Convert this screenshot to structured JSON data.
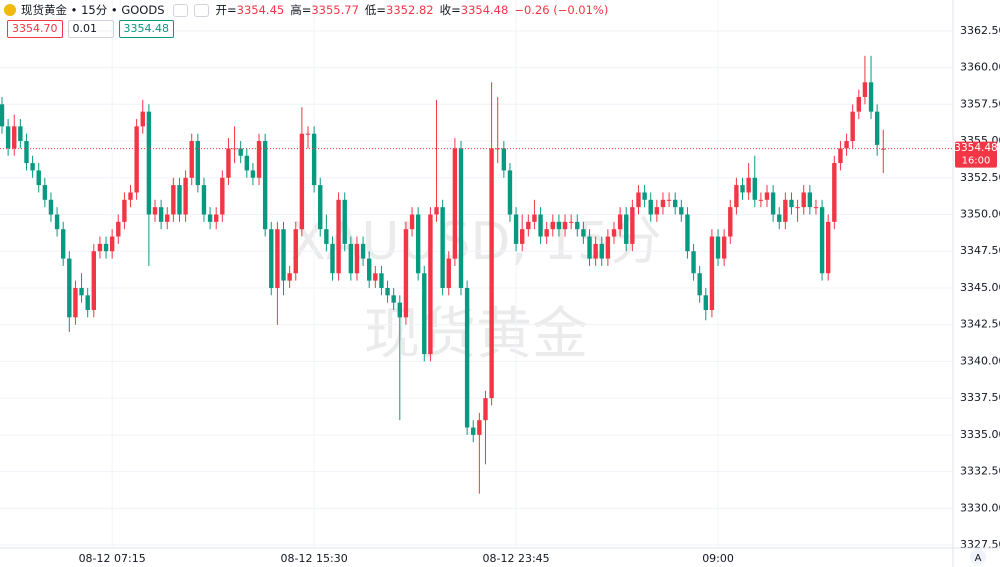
{
  "chart_data": {
    "type": "candlestick",
    "header": {
      "symbol": "现货黄金 • 15分 • GOODS",
      "field_labels": [
        "开=",
        "高=",
        "低=",
        "收="
      ],
      "change": "−0.26 (−0.01%)"
    },
    "quote_boxes": [
      "3354.70",
      "0.01",
      "3354.48"
    ],
    "watermark": [
      "XAUUSD, 15分",
      "现货黄金"
    ],
    "countdown": "16:00",
    "scale_button": "A",
    "up_color": "#f23645",
    "down_color": "#089981",
    "grid": true,
    "ylim": [
      3327.3,
      3364.6
    ],
    "yticks": [
      {
        "value": 3327.5,
        "label": "3327.50"
      },
      {
        "value": 3330,
        "label": "3330.00"
      },
      {
        "value": 3332.5,
        "label": "3332.50"
      },
      {
        "value": 3335,
        "label": "3335.00"
      },
      {
        "value": 3337.5,
        "label": "3337.50"
      },
      {
        "value": 3340,
        "label": "3340.00"
      },
      {
        "value": 3342.5,
        "label": "3342.50"
      },
      {
        "value": 3345,
        "label": "3345.00"
      },
      {
        "value": 3347.5,
        "label": "3347.50"
      },
      {
        "value": 3350,
        "label": "3350.00"
      },
      {
        "value": 3352.5,
        "label": "3352.50"
      },
      {
        "value": 3355,
        "label": "3355.00"
      },
      {
        "value": 3357.5,
        "label": "3357.50"
      },
      {
        "value": 3360,
        "label": "3360.00"
      },
      {
        "value": 3362.5,
        "label": "3362.50"
      }
    ],
    "categories": [
      null,
      null,
      null,
      null,
      null,
      null,
      null,
      null,
      null,
      null,
      null,
      null,
      null,
      null,
      null,
      null,
      null,
      null,
      "08-12 07:15",
      null,
      null,
      null,
      null,
      null,
      null,
      null,
      null,
      null,
      null,
      null,
      null,
      null,
      null,
      null,
      null,
      null,
      null,
      null,
      null,
      null,
      null,
      null,
      null,
      null,
      null,
      null,
      null,
      null,
      null,
      null,
      null,
      "08-12 15:30",
      null,
      null,
      null,
      null,
      null,
      null,
      null,
      null,
      null,
      null,
      null,
      null,
      null,
      null,
      null,
      null,
      null,
      null,
      null,
      null,
      null,
      null,
      null,
      null,
      null,
      null,
      null,
      null,
      null,
      null,
      null,
      null,
      "08-12 23:45",
      null,
      null,
      null,
      null,
      null,
      null,
      null,
      null,
      null,
      null,
      null,
      null,
      null,
      null,
      null,
      null,
      null,
      null,
      null,
      null,
      null,
      null,
      null,
      null,
      null,
      null,
      null,
      null,
      null,
      null,
      null,
      null,
      "09:00",
      null,
      null,
      null,
      null,
      null,
      null,
      null,
      null,
      null,
      null,
      null,
      null,
      null,
      null,
      null,
      null,
      null,
      null,
      null,
      null,
      null,
      null,
      null,
      null,
      null,
      null,
      null
    ],
    "open": [
      3357.5,
      3356.0,
      3354.5,
      3356.0,
      3355.0,
      3353.5,
      3353.0,
      3352.0,
      3351.0,
      3350.0,
      3349.0,
      3347.0,
      3343.0,
      3345.0,
      3344.5,
      3343.5,
      3347.5,
      3348.0,
      3347.5,
      3348.5,
      3349.5,
      3351.0,
      3351.5,
      3356.0,
      3357.0,
      3350.0,
      3350.5,
      3349.5,
      3350.0,
      3352.0,
      3350.0,
      3352.5,
      3355.0,
      3352.0,
      3350.0,
      3349.5,
      3350.0,
      3352.5,
      3354.5,
      3354.5,
      3354.0,
      3353.0,
      3352.5,
      3355.0,
      3349.0,
      3345.0,
      3349.0,
      3345.5,
      3346.0,
      3349.0,
      3355.5,
      3355.5,
      3352.0,
      3349.0,
      3348.0,
      3346.0,
      3351.0,
      3348.0,
      3346.0,
      3348.0,
      3347.0,
      3345.5,
      3346.0,
      3345.0,
      3344.5,
      3344.0,
      3343.0,
      3349.0,
      3350.0,
      3346.0,
      3340.5,
      3350.0,
      3350.5,
      3345.0,
      3347.0,
      3354.5,
      3345.0,
      3335.5,
      3335.0,
      3336.0,
      3337.5,
      3354.5,
      3354.5,
      3353.0,
      3350.0,
      3348.0,
      3349.0,
      3349.5,
      3350.0,
      3348.5,
      3349.0,
      3349.5,
      3349.0,
      3349.5,
      3349.5,
      3349.0,
      3348.5,
      3347.0,
      3348.0,
      3347.0,
      3348.5,
      3349.0,
      3350.0,
      3348.0,
      3350.5,
      3351.5,
      3351.0,
      3350.0,
      3350.5,
      3351.0,
      3351.0,
      3350.5,
      3350.0,
      3347.5,
      3346.0,
      3344.5,
      3343.5,
      3348.5,
      3347.0,
      3348.5,
      3350.5,
      3352.0,
      3351.5,
      3352.5,
      3351.0,
      3351.0,
      3351.5,
      3350.0,
      3349.5,
      3351.0,
      3350.5,
      3350.5,
      3351.5,
      3350.5,
      3350.5,
      3346.0,
      3349.5,
      3353.5,
      3354.5,
      3355.0,
      3357.0,
      3358.0,
      3359.0,
      3357.0,
      3354.45
    ],
    "high": [
      3358.0,
      3356.5,
      3356.8,
      3356.5,
      3355.5,
      3354.0,
      3353.5,
      3352.5,
      3351.5,
      3350.5,
      3349.5,
      3347.5,
      3345.5,
      3346.0,
      3345.0,
      3348.0,
      3348.5,
      3348.5,
      3349.0,
      3350.0,
      3351.5,
      3352.0,
      3356.5,
      3357.8,
      3357.5,
      3351.0,
      3351.0,
      3350.5,
      3352.5,
      3352.5,
      3353.0,
      3355.5,
      3355.5,
      3352.5,
      3350.5,
      3350.5,
      3353.0,
      3355.2,
      3356.0,
      3355.0,
      3354.5,
      3353.5,
      3355.5,
      3355.5,
      3349.5,
      3349.5,
      3349.5,
      3346.5,
      3349.5,
      3357.3,
      3356.0,
      3356.0,
      3352.5,
      3350.0,
      3348.5,
      3351.5,
      3351.5,
      3348.5,
      3348.5,
      3348.5,
      3347.5,
      3346.5,
      3346.5,
      3345.5,
      3345.0,
      3344.5,
      3349.5,
      3350.5,
      3350.5,
      3346.5,
      3350.5,
      3357.8,
      3351.0,
      3347.5,
      3355.2,
      3355.0,
      3345.5,
      3336.0,
      3336.5,
      3338.0,
      3359.0,
      3358.0,
      3355.0,
      3353.5,
      3350.5,
      3350.0,
      3350.0,
      3351.0,
      3350.5,
      3349.5,
      3350.0,
      3350.0,
      3350.0,
      3350.0,
      3350.0,
      3349.5,
      3349.0,
      3348.5,
      3348.5,
      3349.0,
      3349.5,
      3350.5,
      3350.5,
      3351.0,
      3352.0,
      3352.0,
      3351.5,
      3351.0,
      3351.5,
      3351.5,
      3351.5,
      3351.0,
      3350.5,
      3348.0,
      3346.5,
      3345.0,
      3349.0,
      3349.0,
      3349.0,
      3351.0,
      3352.5,
      3352.5,
      3353.5,
      3354.0,
      3351.5,
      3352.0,
      3352.0,
      3350.5,
      3351.5,
      3351.5,
      3351.0,
      3352.0,
      3352.0,
      3351.0,
      3351.0,
      3350.0,
      3354.0,
      3355.0,
      3355.5,
      3357.5,
      3358.5,
      3360.8,
      3360.8,
      3357.5,
      3355.77
    ],
    "low": [
      3355.5,
      3354.0,
      3354.0,
      3354.5,
      3353.0,
      3352.5,
      3351.5,
      3350.5,
      3349.5,
      3348.5,
      3346.5,
      3342.0,
      3342.5,
      3344.0,
      3343.0,
      3343.0,
      3347.0,
      3347.0,
      3347.0,
      3348.0,
      3349.0,
      3350.5,
      3351.0,
      3355.5,
      3346.5,
      3349.5,
      3349.0,
      3349.0,
      3349.5,
      3349.5,
      3349.5,
      3352.0,
      3351.5,
      3349.5,
      3349.0,
      3349.0,
      3349.5,
      3352.0,
      3353.5,
      3353.5,
      3352.5,
      3352.0,
      3352.0,
      3348.5,
      3344.5,
      3342.5,
      3344.5,
      3345.0,
      3345.5,
      3348.5,
      3354.5,
      3351.5,
      3348.5,
      3347.5,
      3345.5,
      3345.5,
      3347.5,
      3345.5,
      3345.5,
      3346.5,
      3345.0,
      3345.0,
      3344.5,
      3344.0,
      3343.5,
      3336.0,
      3342.5,
      3348.5,
      3345.5,
      3340.0,
      3340.0,
      3349.5,
      3344.5,
      3344.5,
      3346.5,
      3344.5,
      3335.0,
      3334.5,
      3331.0,
      3333.0,
      3337.0,
      3353.5,
      3352.5,
      3349.5,
      3347.5,
      3347.5,
      3348.5,
      3349.0,
      3348.0,
      3348.0,
      3348.5,
      3348.5,
      3348.5,
      3349.0,
      3348.5,
      3348.0,
      3346.5,
      3346.5,
      3346.5,
      3346.5,
      3348.0,
      3348.5,
      3347.5,
      3347.5,
      3350.0,
      3350.5,
      3349.5,
      3349.5,
      3350.0,
      3350.5,
      3350.0,
      3349.5,
      3347.0,
      3345.5,
      3344.0,
      3342.8,
      3343.0,
      3346.5,
      3346.5,
      3348.0,
      3350.0,
      3351.0,
      3351.0,
      3350.5,
      3350.5,
      3350.5,
      3349.5,
      3349.0,
      3349.0,
      3350.0,
      3349.5,
      3350.0,
      3350.0,
      3350.0,
      3345.5,
      3345.5,
      3349.0,
      3353.0,
      3354.0,
      3354.5,
      3356.5,
      3357.5,
      3356.5,
      3354.0,
      3352.82
    ],
    "close": [
      3356.0,
      3354.5,
      3356.0,
      3355.0,
      3353.5,
      3353.0,
      3352.0,
      3351.0,
      3350.0,
      3349.0,
      3347.0,
      3343.0,
      3345.0,
      3344.5,
      3343.5,
      3347.5,
      3348.0,
      3347.5,
      3348.5,
      3349.5,
      3351.0,
      3351.5,
      3356.0,
      3357.0,
      3350.0,
      3350.5,
      3349.5,
      3350.0,
      3352.0,
      3350.0,
      3352.5,
      3355.0,
      3352.0,
      3350.0,
      3349.5,
      3350.0,
      3352.5,
      3354.5,
      3354.5,
      3354.0,
      3353.0,
      3352.5,
      3355.0,
      3349.0,
      3345.0,
      3349.0,
      3345.5,
      3346.0,
      3349.0,
      3355.5,
      3355.5,
      3352.0,
      3349.0,
      3348.0,
      3346.0,
      3351.0,
      3348.0,
      3346.0,
      3348.0,
      3347.0,
      3345.5,
      3346.0,
      3345.0,
      3344.5,
      3344.0,
      3343.0,
      3349.0,
      3350.0,
      3346.0,
      3340.5,
      3350.0,
      3350.5,
      3345.0,
      3347.0,
      3354.5,
      3345.0,
      3335.5,
      3335.0,
      3336.0,
      3337.5,
      3354.5,
      3354.5,
      3353.0,
      3350.0,
      3348.0,
      3349.0,
      3349.5,
      3350.0,
      3348.5,
      3349.0,
      3349.5,
      3349.0,
      3349.5,
      3349.5,
      3349.0,
      3348.5,
      3347.0,
      3348.0,
      3347.0,
      3348.5,
      3349.0,
      3350.0,
      3348.0,
      3350.5,
      3351.5,
      3351.0,
      3350.0,
      3350.5,
      3351.0,
      3351.0,
      3350.5,
      3350.0,
      3347.5,
      3346.0,
      3344.5,
      3343.5,
      3348.5,
      3347.0,
      3348.5,
      3350.5,
      3352.0,
      3351.5,
      3352.5,
      3351.0,
      3351.0,
      3351.5,
      3350.0,
      3349.5,
      3351.0,
      3350.5,
      3350.5,
      3351.5,
      3350.5,
      3350.5,
      3346.0,
      3349.5,
      3353.5,
      3354.5,
      3355.0,
      3357.0,
      3358.0,
      3359.0,
      3357.0,
      3354.74,
      3354.48
    ]
  }
}
